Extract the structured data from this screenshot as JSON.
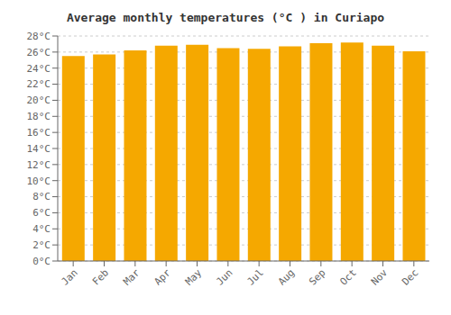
{
  "chart_data": {
    "type": "bar",
    "title": "Average monthly temperatures (°C ) in Curiapo",
    "categories": [
      "Jan",
      "Feb",
      "Mar",
      "Apr",
      "May",
      "Jun",
      "Jul",
      "Aug",
      "Sep",
      "Oct",
      "Nov",
      "Dec"
    ],
    "values": [
      25.5,
      25.7,
      26.2,
      26.8,
      26.9,
      26.5,
      26.4,
      26.7,
      27.1,
      27.2,
      26.8,
      26.1
    ],
    "color": "#F5A800",
    "ylim": [
      0,
      28
    ],
    "yticks": [
      {
        "value": 0,
        "label": "0°C"
      },
      {
        "value": 2,
        "label": "2°C"
      },
      {
        "value": 4,
        "label": "4°C"
      },
      {
        "value": 6,
        "label": "6°C"
      },
      {
        "value": 8,
        "label": "8°C"
      },
      {
        "value": 10,
        "label": "10°C"
      },
      {
        "value": 12,
        "label": "12°C"
      },
      {
        "value": 14,
        "label": "14°C"
      },
      {
        "value": 16,
        "label": "16°C"
      },
      {
        "value": 18,
        "label": "18°C"
      },
      {
        "value": 20,
        "label": "20°C"
      },
      {
        "value": 22,
        "label": "22°C"
      },
      {
        "value": 24,
        "label": "24°C"
      },
      {
        "value": 26,
        "label": "26°C"
      },
      {
        "value": 28,
        "label": "28°C"
      }
    ],
    "grid": true
  }
}
